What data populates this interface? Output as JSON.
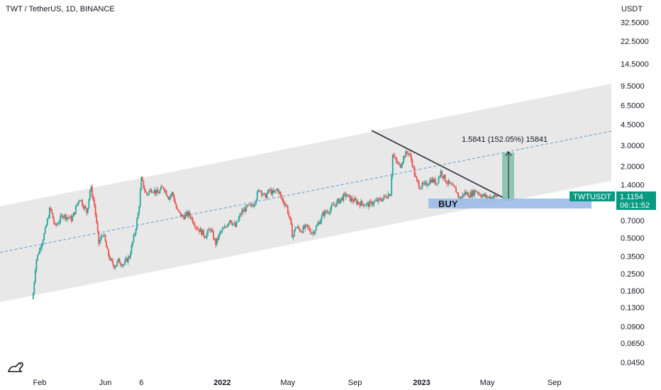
{
  "header": {
    "symbol_title": "TWT / TetherUS, 1D, BINANCE",
    "currency": "USDT"
  },
  "colors": {
    "up": "#26a69a",
    "down": "#ef5350",
    "channel_fill": "#e0e0e0",
    "midline": "#5b9bd5",
    "trendline": "#2a2e39",
    "target_box": "#7fbfa8",
    "buy_zone": "#9bbde8",
    "price_tag": "#089981"
  },
  "annotations": {
    "measure_label": "1.5841 (152.05%) 15841",
    "buy_label": "BUY"
  },
  "price_tag": {
    "ticker": "TWTUSDT",
    "price": "1.1154",
    "countdown": "06:11:52"
  },
  "logo": {
    "name": "tradingview-logo-icon"
  },
  "chart_data": {
    "type": "candlestick",
    "title": "TWT / TetherUS, 1D, BINANCE",
    "y_scale": "log",
    "ylim": [
      0.04,
      48
    ],
    "y_ticks": [
      "32.5000",
      "22.5000",
      "14.5000",
      "9.5000",
      "6.5000",
      "4.5000",
      "3.0000",
      "2.0000",
      "1.4000",
      "0.7000",
      "0.5000",
      "0.3500",
      "0.2500",
      "0.1800",
      "0.1300",
      "0.0900",
      "0.0650",
      "0.0450"
    ],
    "x_ticks": [
      "Feb",
      "Jun",
      "6",
      "2022",
      "May",
      "Sep",
      "2023",
      "May",
      "Sep"
    ],
    "x_tick_dates": [
      "2021-02-01",
      "2021-06-01",
      "2021-08-06",
      "2022-01-01",
      "2022-05-01",
      "2022-09-01",
      "2023-01-01",
      "2023-05-01",
      "2023-09-01"
    ],
    "x_range": [
      "2021-01-01",
      "2023-12-28"
    ],
    "series": [
      {
        "type": "close",
        "points": [
          [
            "2021-01-20",
            0.17
          ],
          [
            "2021-01-25",
            0.32
          ],
          [
            "2021-02-10",
            0.55
          ],
          [
            "2021-02-20",
            0.9
          ],
          [
            "2021-03-01",
            0.62
          ],
          [
            "2021-03-15",
            0.78
          ],
          [
            "2021-04-01",
            0.72
          ],
          [
            "2021-04-15",
            1.1
          ],
          [
            "2021-04-28",
            0.82
          ],
          [
            "2021-05-05",
            1.35
          ],
          [
            "2021-05-12",
            0.95
          ],
          [
            "2021-05-20",
            0.45
          ],
          [
            "2021-05-28",
            0.55
          ],
          [
            "2021-06-05",
            0.38
          ],
          [
            "2021-06-12",
            0.31
          ],
          [
            "2021-06-18",
            0.29
          ],
          [
            "2021-06-25",
            0.32
          ],
          [
            "2021-07-05",
            0.3
          ],
          [
            "2021-07-15",
            0.35
          ],
          [
            "2021-07-25",
            0.55
          ],
          [
            "2021-08-01",
            0.85
          ],
          [
            "2021-08-06",
            1.55
          ],
          [
            "2021-08-15",
            1.15
          ],
          [
            "2021-08-25",
            1.3
          ],
          [
            "2021-09-05",
            1.18
          ],
          [
            "2021-09-15",
            1.35
          ],
          [
            "2021-09-25",
            1.1
          ],
          [
            "2021-10-02",
            1.2
          ],
          [
            "2021-10-10",
            0.85
          ],
          [
            "2021-10-20",
            0.75
          ],
          [
            "2021-11-01",
            0.8
          ],
          [
            "2021-11-15",
            0.62
          ],
          [
            "2021-12-01",
            0.52
          ],
          [
            "2021-12-10",
            0.6
          ],
          [
            "2021-12-20",
            0.45
          ],
          [
            "2021-12-28",
            0.55
          ],
          [
            "2022-01-05",
            0.6
          ],
          [
            "2022-01-15",
            0.72
          ],
          [
            "2022-01-25",
            0.62
          ],
          [
            "2022-02-05",
            0.82
          ],
          [
            "2022-02-15",
            0.9
          ],
          [
            "2022-02-22",
            0.92
          ],
          [
            "2022-03-01",
            1.0
          ],
          [
            "2022-03-10",
            1.3
          ],
          [
            "2022-03-20",
            1.1
          ],
          [
            "2022-03-28",
            1.25
          ],
          [
            "2022-04-05",
            1.18
          ],
          [
            "2022-04-12",
            1.3
          ],
          [
            "2022-04-20",
            1.05
          ],
          [
            "2022-04-28",
            0.95
          ],
          [
            "2022-05-05",
            0.7
          ],
          [
            "2022-05-10",
            0.5
          ],
          [
            "2022-05-15",
            0.62
          ],
          [
            "2022-05-25",
            0.58
          ],
          [
            "2022-06-05",
            0.62
          ],
          [
            "2022-06-15",
            0.55
          ],
          [
            "2022-06-25",
            0.65
          ],
          [
            "2022-07-05",
            0.8
          ],
          [
            "2022-07-15",
            0.85
          ],
          [
            "2022-07-25",
            0.95
          ],
          [
            "2022-08-05",
            1.05
          ],
          [
            "2022-08-15",
            1.15
          ],
          [
            "2022-08-25",
            1.05
          ],
          [
            "2022-09-05",
            1.0
          ],
          [
            "2022-09-15",
            0.97
          ],
          [
            "2022-09-25",
            0.95
          ],
          [
            "2022-10-05",
            1.0
          ],
          [
            "2022-10-15",
            1.03
          ],
          [
            "2022-10-25",
            1.1
          ],
          [
            "2022-11-05",
            1.2
          ],
          [
            "2022-11-09",
            2.5
          ],
          [
            "2022-11-15",
            2.2
          ],
          [
            "2022-11-22",
            2.0
          ],
          [
            "2022-12-01",
            2.5
          ],
          [
            "2022-12-08",
            2.65
          ],
          [
            "2022-12-15",
            2.1
          ],
          [
            "2022-12-22",
            1.5
          ],
          [
            "2022-12-30",
            1.35
          ],
          [
            "2023-01-08",
            1.4
          ],
          [
            "2023-01-18",
            1.55
          ],
          [
            "2023-01-28",
            1.45
          ],
          [
            "2023-02-05",
            1.8
          ],
          [
            "2023-02-15",
            1.5
          ],
          [
            "2023-02-25",
            1.35
          ],
          [
            "2023-03-05",
            1.25
          ],
          [
            "2023-03-12",
            1.05
          ],
          [
            "2023-03-20",
            1.2
          ],
          [
            "2023-03-30",
            1.15
          ],
          [
            "2023-04-10",
            1.25
          ],
          [
            "2023-04-20",
            1.15
          ],
          [
            "2023-04-30",
            1.1
          ],
          [
            "2023-05-10",
            1.1
          ],
          [
            "2023-05-20",
            1.12
          ]
        ]
      }
    ]
  }
}
